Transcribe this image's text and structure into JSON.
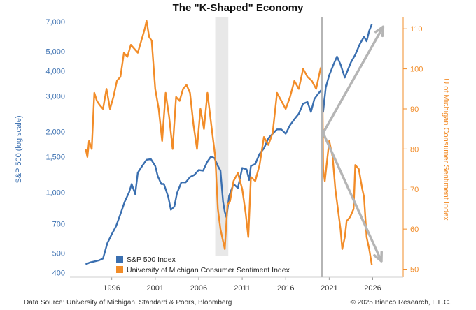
{
  "chart_data": {
    "type": "line",
    "title": "The \"K-Shaped\" Economy",
    "ylabel_left": "S&P 500 (log scale)",
    "ylabel_right": "U of Michigan Consumer Sentiment Index",
    "x_ticks": [
      1996,
      2001,
      2006,
      2011,
      2016,
      2021,
      2026
    ],
    "left_ticks": [
      400,
      500,
      700,
      1000,
      1500,
      2000,
      3000,
      4000,
      5000,
      7000
    ],
    "left_tick_labels": [
      "400",
      "500",
      "700",
      "1,000",
      "1,500",
      "2,000",
      "3,000",
      "4,000",
      "5,000",
      "7,000"
    ],
    "right_ticks": [
      50,
      60,
      70,
      80,
      90,
      100,
      110
    ],
    "right_tick_labels": [
      "50",
      "60",
      "70",
      "80",
      "90",
      "100",
      "110"
    ],
    "xlim": [
      1991.2,
      2029.5
    ],
    "ylim_left_log": [
      380,
      7400
    ],
    "ylim_right": [
      48,
      113
    ],
    "shaded_period": [
      2007.9,
      2009.4
    ],
    "vertical_marker": 2020.2,
    "k_arrows": {
      "origin": [
        2020.3,
        84
      ],
      "up_end": [
        2027.2,
        110.5
      ],
      "down_end": [
        2027.0,
        52
      ]
    },
    "series": [
      {
        "name": "S&P 500 Index",
        "color": "#3a6fb0",
        "axis": "left",
        "x": [
          1993.0,
          1993.5,
          1994.0,
          1994.5,
          1995.0,
          1995.5,
          1996.0,
          1996.5,
          1997.0,
          1997.5,
          1998.0,
          1998.3,
          1998.7,
          1999.0,
          1999.5,
          2000.0,
          2000.5,
          2001.0,
          2001.3,
          2001.7,
          2002.0,
          2002.5,
          2002.8,
          2003.2,
          2003.5,
          2004.0,
          2004.5,
          2005.0,
          2005.5,
          2006.0,
          2006.5,
          2007.0,
          2007.4,
          2007.8,
          2008.2,
          2008.5,
          2008.8,
          2009.0,
          2009.2,
          2009.5,
          2010.0,
          2010.5,
          2011.0,
          2011.5,
          2011.8,
          2012.0,
          2012.5,
          2013.0,
          2013.5,
          2014.0,
          2014.5,
          2015.0,
          2015.5,
          2016.0,
          2016.5,
          2017.0,
          2017.5,
          2018.0,
          2018.5,
          2018.9,
          2019.3,
          2019.8,
          2020.2,
          2020.3,
          2020.6,
          2021.0,
          2021.5,
          2021.9,
          2022.3,
          2022.8,
          2023.0,
          2023.5,
          2024.0,
          2024.5,
          2025.0,
          2025.3,
          2025.6,
          2025.9
        ],
        "values": [
          440,
          450,
          455,
          460,
          470,
          560,
          620,
          680,
          780,
          900,
          1000,
          1100,
          980,
          1250,
          1350,
          1450,
          1460,
          1350,
          1200,
          1100,
          1100,
          950,
          820,
          850,
          990,
          1120,
          1120,
          1190,
          1220,
          1290,
          1280,
          1420,
          1500,
          1480,
          1350,
          1280,
          900,
          800,
          750,
          960,
          1100,
          1050,
          1320,
          1300,
          1150,
          1350,
          1380,
          1550,
          1650,
          1850,
          1950,
          2050,
          2050,
          1950,
          2150,
          2300,
          2450,
          2750,
          2800,
          2500,
          2900,
          3100,
          3250,
          2500,
          3300,
          3800,
          4300,
          4700,
          4300,
          3700,
          3900,
          4400,
          4800,
          5400,
          5900,
          5600,
          6300,
          6800
        ]
      },
      {
        "name": "University of Michigan Consumer Sentiment Index",
        "color": "#f28c28",
        "axis": "right",
        "x": [
          1993.0,
          1993.2,
          1993.4,
          1993.7,
          1994.0,
          1994.3,
          1994.6,
          1995.0,
          1995.4,
          1995.8,
          1996.2,
          1996.6,
          1997.0,
          1997.4,
          1997.8,
          1998.2,
          1998.6,
          1999.0,
          1999.4,
          1999.8,
          2000.0,
          2000.3,
          2000.6,
          2001.0,
          2001.4,
          2001.8,
          2002.2,
          2002.6,
          2003.0,
          2003.4,
          2003.8,
          2004.2,
          2004.6,
          2005.0,
          2005.4,
          2005.8,
          2006.2,
          2006.6,
          2007.0,
          2007.5,
          2007.9,
          2008.2,
          2008.5,
          2008.8,
          2009.0,
          2009.3,
          2009.6,
          2010.0,
          2010.5,
          2011.0,
          2011.4,
          2011.7,
          2012.0,
          2012.5,
          2013.0,
          2013.5,
          2014.0,
          2014.5,
          2015.0,
          2015.5,
          2016.0,
          2016.5,
          2017.0,
          2017.5,
          2018.0,
          2018.5,
          2019.0,
          2019.5,
          2020.0,
          2020.2,
          2020.3,
          2020.5,
          2020.8,
          2021.0,
          2021.4,
          2021.7,
          2022.0,
          2022.3,
          2022.5,
          2022.8,
          2023.0,
          2023.4,
          2023.8,
          2024.0,
          2024.4,
          2024.8,
          2025.0,
          2025.3,
          2025.6,
          2025.9
        ],
        "values": [
          80,
          78,
          82,
          80,
          94,
          92,
          91,
          90,
          95,
          90,
          93,
          97,
          98,
          104,
          103,
          106,
          105,
          104,
          107,
          110,
          112,
          108,
          107,
          95,
          90,
          82,
          94,
          88,
          80,
          93,
          92,
          95,
          96,
          94,
          86,
          80,
          90,
          85,
          94,
          85,
          78,
          65,
          60,
          57,
          55,
          66,
          67,
          72,
          74,
          70,
          64,
          58,
          73,
          72,
          76,
          83,
          81,
          84,
          94,
          92,
          90,
          93,
          97,
          95,
          100,
          98,
          97,
          95,
          100,
          101,
          75,
          72,
          78,
          82,
          78,
          70,
          65,
          60,
          55,
          58,
          62,
          63,
          65,
          76,
          75,
          70,
          68,
          58,
          55,
          51
        ]
      }
    ]
  },
  "footer": {
    "source": "Data Source: University of Michigan, Standard & Poors, Bloomberg",
    "copyright": "© 2025 Bianco Research, L.L.C."
  }
}
